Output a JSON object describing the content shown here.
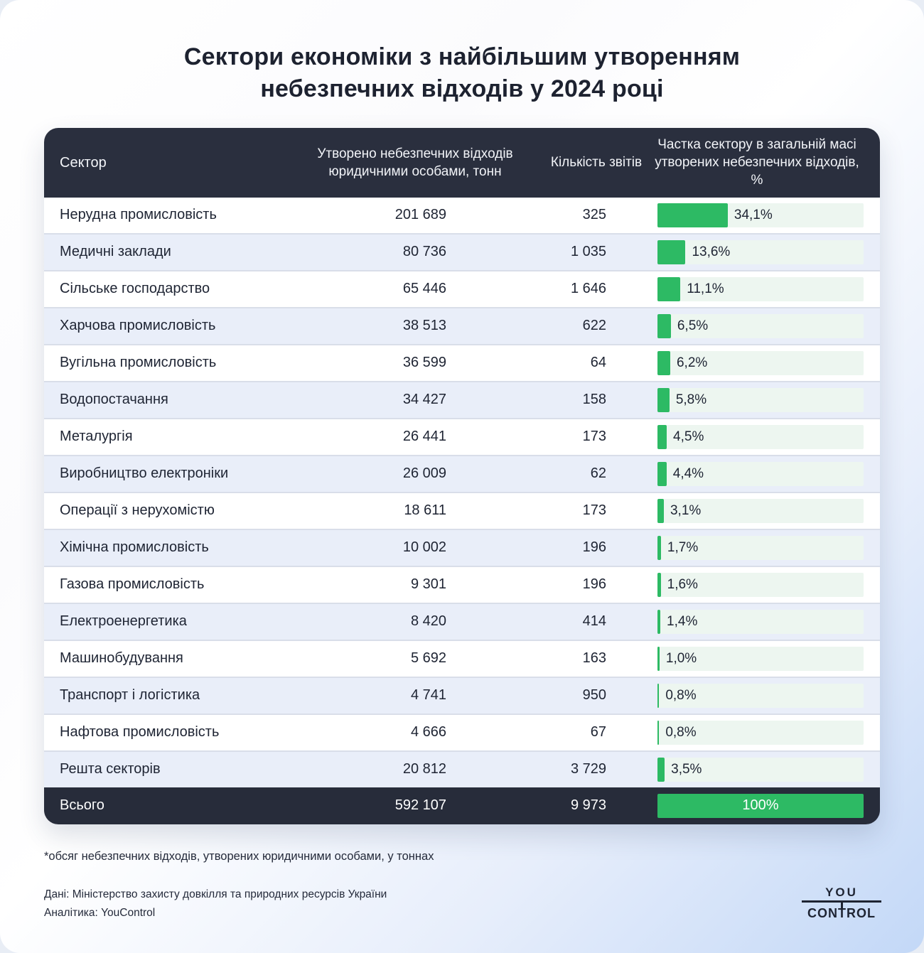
{
  "title": "Сектори економіки з найбільшим утворенням небезпечних відходів у 2024 році",
  "table": {
    "headers": {
      "sector": "Сектор",
      "tons": "Утворено небезпечних відходів юридичними особами, тонн",
      "reports": "Кількість звітів",
      "share": "Частка сектору в загальній масі утворених небезпечних відходів, %"
    },
    "rows": [
      {
        "sector": "Нерудна промисловість",
        "tons": "201 689",
        "reports": "325",
        "share_pct": 34.1,
        "share_label": "34,1%"
      },
      {
        "sector": "Медичні заклади",
        "tons": "80 736",
        "reports": "1 035",
        "share_pct": 13.6,
        "share_label": "13,6%"
      },
      {
        "sector": "Сільське господарство",
        "tons": "65 446",
        "reports": "1 646",
        "share_pct": 11.1,
        "share_label": "11,1%"
      },
      {
        "sector": "Харчова промисловість",
        "tons": "38 513",
        "reports": "622",
        "share_pct": 6.5,
        "share_label": "6,5%"
      },
      {
        "sector": "Вугільна промисловість",
        "tons": "36 599",
        "reports": "64",
        "share_pct": 6.2,
        "share_label": "6,2%"
      },
      {
        "sector": "Водопостачання",
        "tons": "34 427",
        "reports": "158",
        "share_pct": 5.8,
        "share_label": "5,8%"
      },
      {
        "sector": "Металургія",
        "tons": "26 441",
        "reports": "173",
        "share_pct": 4.5,
        "share_label": "4,5%"
      },
      {
        "sector": "Виробництво електроніки",
        "tons": "26 009",
        "reports": "62",
        "share_pct": 4.4,
        "share_label": "4,4%"
      },
      {
        "sector": "Операції з нерухомістю",
        "tons": "18 611",
        "reports": "173",
        "share_pct": 3.1,
        "share_label": "3,1%"
      },
      {
        "sector": "Хімічна промисловість",
        "tons": "10 002",
        "reports": "196",
        "share_pct": 1.7,
        "share_label": "1,7%"
      },
      {
        "sector": "Газова промисловість",
        "tons": "9 301",
        "reports": "196",
        "share_pct": 1.6,
        "share_label": "1,6%"
      },
      {
        "sector": "Електроенергетика",
        "tons": "8 420",
        "reports": "414",
        "share_pct": 1.4,
        "share_label": "1,4%"
      },
      {
        "sector": "Машинобудування",
        "tons": "5 692",
        "reports": "163",
        "share_pct": 1.0,
        "share_label": "1,0%"
      },
      {
        "sector": "Транспорт і логістика",
        "tons": "4 741",
        "reports": "950",
        "share_pct": 0.8,
        "share_label": "0,8%"
      },
      {
        "sector": "Нафтова промисловість",
        "tons": "4 666",
        "reports": "67",
        "share_pct": 0.8,
        "share_label": "0,8%"
      },
      {
        "sector": "Решта секторів",
        "tons": "20 812",
        "reports": "3 729",
        "share_pct": 3.5,
        "share_label": "3,5%"
      }
    ],
    "total": {
      "sector": "Всього",
      "tons": "592 107",
      "reports": "9 973",
      "share_pct": 100,
      "share_label": "100%"
    }
  },
  "footnote": "*обсяг небезпечних відходів, утворених юридичними особами, у тоннах",
  "source_line": "Дані: Міністерство захисту довкілля та природних ресурсів України",
  "analytics_line": "Аналітика: YouControl",
  "logo": {
    "top": "YOU",
    "bottom": "CONTROL"
  },
  "colors": {
    "accent_green": "#2dba64",
    "bar_track": "#edf6f0",
    "header_bg": "#2a2f3e",
    "total_bg": "#272c3a",
    "row_alt": "#e9eef9",
    "text_dark": "#1e2433",
    "page_gradient_end": "#c3d8f7"
  },
  "chart_data": {
    "type": "table",
    "title": "Сектори економіки з найбільшим утворенням небезпечних відходів у 2024 році",
    "columns": [
      "Сектор",
      "Утворено небезпечних відходів юридичними особами, тонн",
      "Кількість звітів",
      "Частка сектору в загальній масі утворених небезпечних відходів, %"
    ],
    "rows": [
      [
        "Нерудна промисловість",
        201689,
        325,
        34.1
      ],
      [
        "Медичні заклади",
        80736,
        1035,
        13.6
      ],
      [
        "Сільське господарство",
        65446,
        1646,
        11.1
      ],
      [
        "Харчова промисловість",
        38513,
        622,
        6.5
      ],
      [
        "Вугільна промисловість",
        36599,
        64,
        6.2
      ],
      [
        "Водопостачання",
        34427,
        158,
        5.8
      ],
      [
        "Металургія",
        26441,
        173,
        4.5
      ],
      [
        "Виробництво електроніки",
        26009,
        62,
        4.4
      ],
      [
        "Операції з нерухомістю",
        18611,
        173,
        3.1
      ],
      [
        "Хімічна промисловість",
        10002,
        196,
        1.7
      ],
      [
        "Газова промисловість",
        9301,
        196,
        1.6
      ],
      [
        "Електроенергетика",
        8420,
        414,
        1.4
      ],
      [
        "Машинобудування",
        5692,
        163,
        1.0
      ],
      [
        "Транспорт і логістика",
        4741,
        950,
        0.8
      ],
      [
        "Нафтова промисловість",
        4666,
        67,
        0.8
      ],
      [
        "Решта секторів",
        20812,
        3729,
        3.5
      ]
    ],
    "total_row": [
      "Всього",
      592107,
      9973,
      100.0
    ],
    "bar_type": "bar",
    "bar_color": "#2dba64",
    "bar_range": [
      0,
      100
    ],
    "legend": "none",
    "grid": "off"
  }
}
